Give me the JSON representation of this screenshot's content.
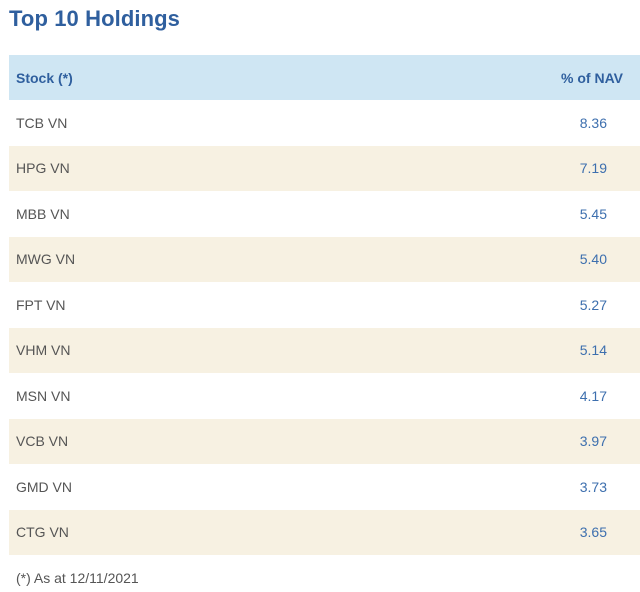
{
  "title": "Top 10 Holdings",
  "table": {
    "headers": {
      "stock": "Stock (*)",
      "nav": "% of NAV"
    },
    "rows": [
      {
        "stock": "TCB VN",
        "nav": "8.36"
      },
      {
        "stock": "HPG VN",
        "nav": "7.19"
      },
      {
        "stock": "MBB VN",
        "nav": "5.45"
      },
      {
        "stock": "MWG VN",
        "nav": "5.40"
      },
      {
        "stock": "FPT VN",
        "nav": "5.27"
      },
      {
        "stock": "VHM VN",
        "nav": "5.14"
      },
      {
        "stock": "MSN VN",
        "nav": "4.17"
      },
      {
        "stock": "VCB VN",
        "nav": "3.97"
      },
      {
        "stock": "GMD VN",
        "nav": "3.73"
      },
      {
        "stock": "CTG VN",
        "nav": "3.65"
      }
    ]
  },
  "footnote": "(*) As at 12/11/2021",
  "colors": {
    "title": "#2f5f9e",
    "header_bg": "#cfe6f3",
    "alt_row_bg": "#f7f1e2",
    "value_text": "#3d6fae"
  }
}
